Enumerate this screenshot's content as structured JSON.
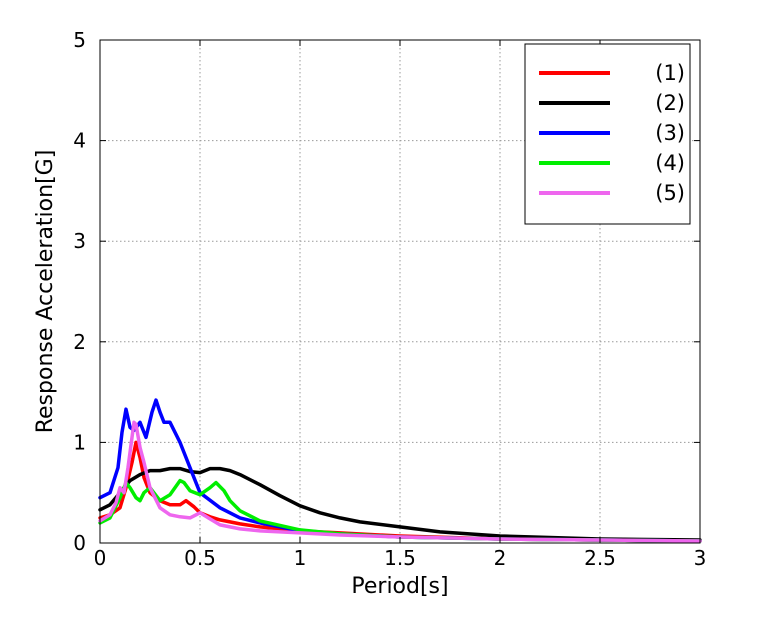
{
  "chart_data": {
    "type": "line",
    "title": "",
    "xlabel": "Period[s]",
    "ylabel": "Response Acceleration[G]",
    "xlim": [
      0,
      3
    ],
    "ylim": [
      0,
      5
    ],
    "xticks": [
      0,
      0.5,
      1,
      1.5,
      2,
      2.5,
      3
    ],
    "xtick_labels": [
      "0",
      "0.5",
      "1",
      "1.5",
      "2",
      "2.5",
      "3"
    ],
    "yticks": [
      0,
      1,
      2,
      3,
      4,
      5
    ],
    "ytick_labels": [
      "0",
      "1",
      "2",
      "3",
      "4",
      "5"
    ],
    "grid": true,
    "legend_position": "top-right",
    "series": [
      {
        "name": "(1)",
        "color": "#ff0000",
        "x": [
          0,
          0.05,
          0.1,
          0.13,
          0.16,
          0.18,
          0.2,
          0.22,
          0.25,
          0.3,
          0.35,
          0.4,
          0.43,
          0.47,
          0.5,
          0.55,
          0.6,
          0.7,
          0.8,
          1.0,
          1.2,
          1.5,
          2.0,
          2.5,
          3.0
        ],
        "y": [
          0.25,
          0.28,
          0.35,
          0.55,
          0.8,
          1.0,
          0.85,
          0.65,
          0.5,
          0.42,
          0.38,
          0.38,
          0.42,
          0.36,
          0.3,
          0.26,
          0.23,
          0.19,
          0.16,
          0.12,
          0.1,
          0.07,
          0.04,
          0.03,
          0.02
        ]
      },
      {
        "name": "(2)",
        "color": "#000000",
        "x": [
          0,
          0.05,
          0.1,
          0.15,
          0.2,
          0.25,
          0.3,
          0.35,
          0.4,
          0.45,
          0.5,
          0.55,
          0.6,
          0.65,
          0.7,
          0.8,
          0.9,
          1.0,
          1.1,
          1.2,
          1.3,
          1.5,
          1.7,
          2.0,
          2.5,
          3.0
        ],
        "y": [
          0.33,
          0.38,
          0.5,
          0.62,
          0.68,
          0.72,
          0.72,
          0.74,
          0.74,
          0.71,
          0.7,
          0.74,
          0.74,
          0.72,
          0.68,
          0.58,
          0.47,
          0.37,
          0.3,
          0.25,
          0.21,
          0.16,
          0.11,
          0.07,
          0.04,
          0.03
        ]
      },
      {
        "name": "(3)",
        "color": "#0000ff",
        "x": [
          0,
          0.05,
          0.09,
          0.11,
          0.13,
          0.15,
          0.17,
          0.2,
          0.23,
          0.26,
          0.28,
          0.3,
          0.32,
          0.35,
          0.4,
          0.45,
          0.5,
          0.6,
          0.7,
          0.8,
          1.0,
          1.2,
          1.5,
          2.0,
          2.5,
          3.0
        ],
        "y": [
          0.45,
          0.5,
          0.75,
          1.1,
          1.33,
          1.15,
          1.12,
          1.2,
          1.05,
          1.3,
          1.42,
          1.3,
          1.2,
          1.2,
          1.0,
          0.75,
          0.5,
          0.35,
          0.25,
          0.2,
          0.12,
          0.09,
          0.06,
          0.04,
          0.03,
          0.02
        ]
      },
      {
        "name": "(4)",
        "color": "#00ee00",
        "x": [
          0,
          0.05,
          0.1,
          0.13,
          0.15,
          0.18,
          0.2,
          0.22,
          0.25,
          0.3,
          0.35,
          0.4,
          0.42,
          0.45,
          0.5,
          0.55,
          0.58,
          0.62,
          0.65,
          0.7,
          0.8,
          1.0,
          1.2,
          1.5,
          2.0,
          2.5,
          3.0
        ],
        "y": [
          0.2,
          0.25,
          0.45,
          0.6,
          0.55,
          0.45,
          0.42,
          0.5,
          0.55,
          0.42,
          0.48,
          0.62,
          0.6,
          0.52,
          0.48,
          0.55,
          0.6,
          0.52,
          0.42,
          0.32,
          0.22,
          0.13,
          0.09,
          0.06,
          0.04,
          0.03,
          0.02
        ]
      },
      {
        "name": "(5)",
        "color": "#ee66ee",
        "x": [
          0,
          0.05,
          0.08,
          0.1,
          0.12,
          0.14,
          0.16,
          0.17,
          0.18,
          0.2,
          0.22,
          0.25,
          0.3,
          0.35,
          0.4,
          0.45,
          0.5,
          0.55,
          0.6,
          0.7,
          0.8,
          1.0,
          1.2,
          1.5,
          2.0,
          2.5,
          3.0
        ],
        "y": [
          0.22,
          0.28,
          0.4,
          0.55,
          0.5,
          0.75,
          1.05,
          1.2,
          1.18,
          0.95,
          0.8,
          0.55,
          0.35,
          0.28,
          0.26,
          0.25,
          0.3,
          0.24,
          0.18,
          0.14,
          0.12,
          0.1,
          0.08,
          0.06,
          0.04,
          0.03,
          0.02
        ]
      }
    ]
  }
}
